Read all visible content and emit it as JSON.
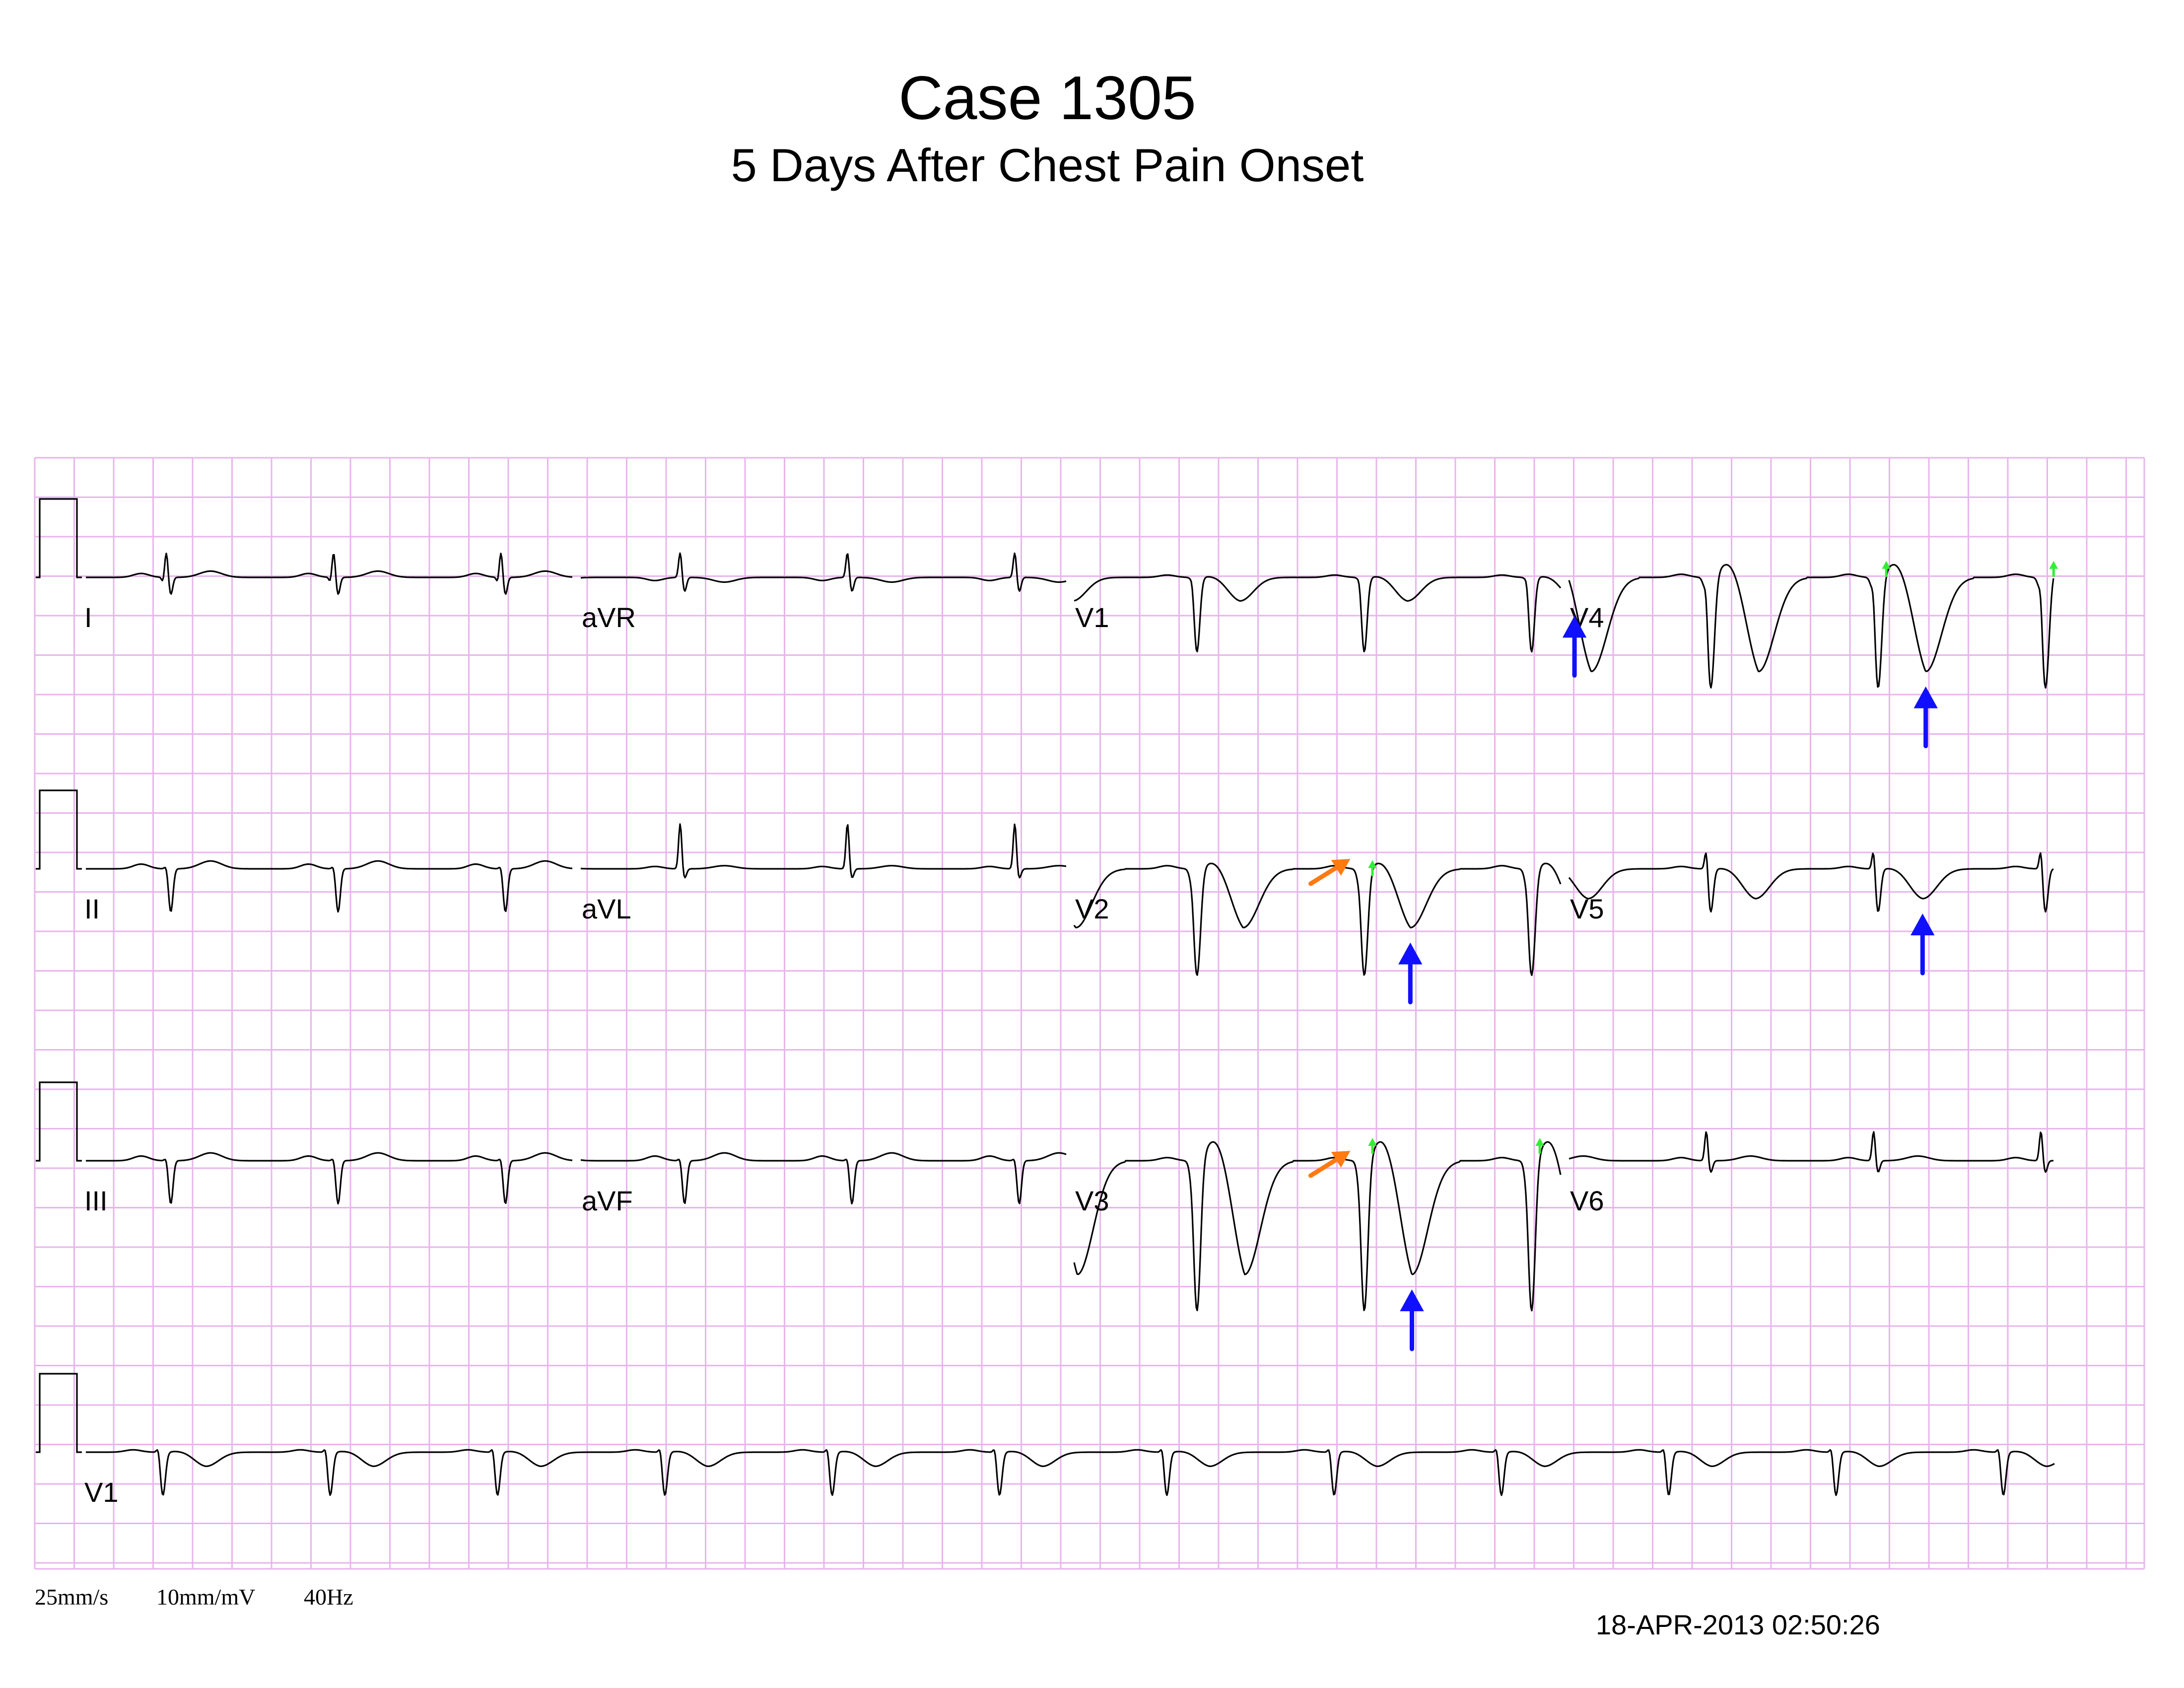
{
  "title": "Case 1305",
  "subtitle": "5 Days After Chest Pain Onset",
  "colors": {
    "grid": "#e8b4ec",
    "trace": "#000000",
    "arrow_blue": "#1010ff",
    "arrow_orange": "#ff7a10",
    "arrow_green": "#33ee33"
  },
  "rows": [
    {
      "leads": [
        {
          "label": "I",
          "pattern": "limb-small"
        },
        {
          "label": "aVR",
          "pattern": "avr"
        },
        {
          "label": "V1",
          "pattern": "v1"
        },
        {
          "label": "V4",
          "pattern": "v4"
        }
      ]
    },
    {
      "leads": [
        {
          "label": "II",
          "pattern": "limb-neg"
        },
        {
          "label": "aVL",
          "pattern": "avl"
        },
        {
          "label": "V2",
          "pattern": "v2"
        },
        {
          "label": "V5",
          "pattern": "v5"
        }
      ]
    },
    {
      "leads": [
        {
          "label": "III",
          "pattern": "limb-neg"
        },
        {
          "label": "aVF",
          "pattern": "limb-neg"
        },
        {
          "label": "V3",
          "pattern": "v3"
        },
        {
          "label": "V6",
          "pattern": "v6"
        }
      ]
    }
  ],
  "rhythm": {
    "label": "V1",
    "pattern": "rhythm"
  },
  "annotations": [
    {
      "type": "blue-up",
      "lead": "V1",
      "beat": 2,
      "meaning": "T-wave inversion"
    },
    {
      "type": "blue-up",
      "lead": "V4",
      "beat": 1,
      "meaning": "T-wave inversion"
    },
    {
      "type": "blue-up",
      "lead": "V2",
      "beat": 1,
      "meaning": "T-wave inversion"
    },
    {
      "type": "blue-up",
      "lead": "V5",
      "beat": 1,
      "meaning": "T-wave inversion"
    },
    {
      "type": "blue-up",
      "lead": "V3",
      "beat": 1,
      "meaning": "T-wave inversion"
    },
    {
      "type": "orange-diag",
      "lead": "V2",
      "beat": 1
    },
    {
      "type": "orange-diag",
      "lead": "V3",
      "beat": 1
    },
    {
      "type": "green-small",
      "lead": "V4",
      "beat": 1
    },
    {
      "type": "green-small",
      "lead": "V4",
      "beat": 2
    },
    {
      "type": "green-small",
      "lead": "V2",
      "beat": 1
    },
    {
      "type": "green-small",
      "lead": "V3",
      "beat": 1
    },
    {
      "type": "green-small",
      "lead": "V3",
      "beat": 2
    }
  ],
  "footer": {
    "speed": "25mm/s",
    "gain": "10mm/mV",
    "filter": "40Hz",
    "timestamp": "18-APR-2013  02:50:26"
  }
}
